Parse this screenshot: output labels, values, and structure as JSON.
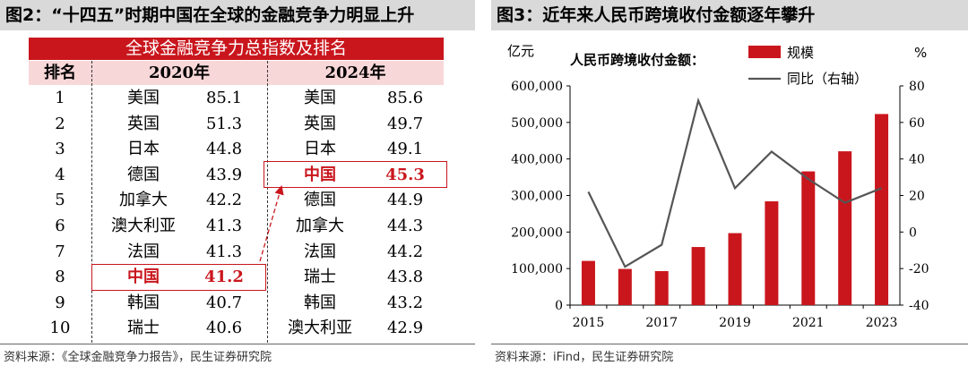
{
  "left_figure": {
    "title": "图2：“十四五”时期中国在全球的金融竞争力明显上升",
    "table_title": "全球金融竞争力总指数及排名",
    "headers": {
      "rank": "排名",
      "year1": "2020年",
      "year2": "2024年"
    },
    "rows": [
      {
        "rank": "1",
        "c2020": "美国",
        "v2020": "85.1",
        "c2024": "美国",
        "v2024": "85.6"
      },
      {
        "rank": "2",
        "c2020": "英国",
        "v2020": "51.3",
        "c2024": "英国",
        "v2024": "49.7"
      },
      {
        "rank": "3",
        "c2020": "日本",
        "v2020": "44.8",
        "c2024": "日本",
        "v2024": "49.1"
      },
      {
        "rank": "4",
        "c2020": "德国",
        "v2020": "43.9",
        "c2024": "中国",
        "v2024": "45.3"
      },
      {
        "rank": "5",
        "c2020": "加拿大",
        "v2020": "42.2",
        "c2024": "德国",
        "v2024": "44.9"
      },
      {
        "rank": "6",
        "c2020": "澳大利亚",
        "v2020": "41.3",
        "c2024": "加拿大",
        "v2024": "44.3"
      },
      {
        "rank": "7",
        "c2020": "法国",
        "v2020": "41.3",
        "c2024": "法国",
        "v2024": "44.2"
      },
      {
        "rank": "8",
        "c2020": "中国",
        "v2020": "41.2",
        "c2024": "瑞士",
        "v2024": "43.8"
      },
      {
        "rank": "9",
        "c2020": "韩国",
        "v2020": "40.7",
        "c2024": "韩国",
        "v2024": "43.2"
      },
      {
        "rank": "10",
        "c2020": "瑞士",
        "v2020": "40.6",
        "c2024": "澳大利亚",
        "v2024": "42.9"
      }
    ],
    "highlight_color": "#c9161d",
    "source": "资料来源：《全球金融竞争力报告》，民生证券研究院"
  },
  "right_figure": {
    "title": "图3：近年来人民币跨境收付金额逐年攀升",
    "source": "资料来源：iFind，民生证券研究院",
    "chart_data": {
      "type": "bar+line",
      "title": "人民币跨境收付金额：",
      "left_unit": "亿元",
      "right_unit": "%",
      "x": [
        2015,
        2016,
        2017,
        2018,
        2019,
        2020,
        2021,
        2022,
        2023
      ],
      "x_tick_labels": [
        "2015",
        "2017",
        "2019",
        "2021",
        "2023"
      ],
      "y_left_ticks": [
        "0",
        "100,000",
        "200,000",
        "300,000",
        "400,000",
        "500,000",
        "600,000"
      ],
      "y_right_ticks": [
        "-40",
        "-20",
        "0",
        "20",
        "40",
        "60",
        "80"
      ],
      "ylim_left": [
        0,
        600000
      ],
      "ylim_right": [
        -40,
        80
      ],
      "series": [
        {
          "name": "规模",
          "kind": "bar",
          "axis": "left",
          "color": "#c9161d",
          "values": [
            121000,
            99000,
            93000,
            159000,
            197000,
            284000,
            366000,
            421000,
            523000
          ]
        },
        {
          "name": "同比（右轴）",
          "kind": "line",
          "axis": "right",
          "color": "#555555",
          "values": [
            22,
            -19,
            -7,
            72,
            24,
            44,
            29,
            16,
            24
          ]
        }
      ],
      "legend_position": "top-right",
      "grid": false
    }
  }
}
